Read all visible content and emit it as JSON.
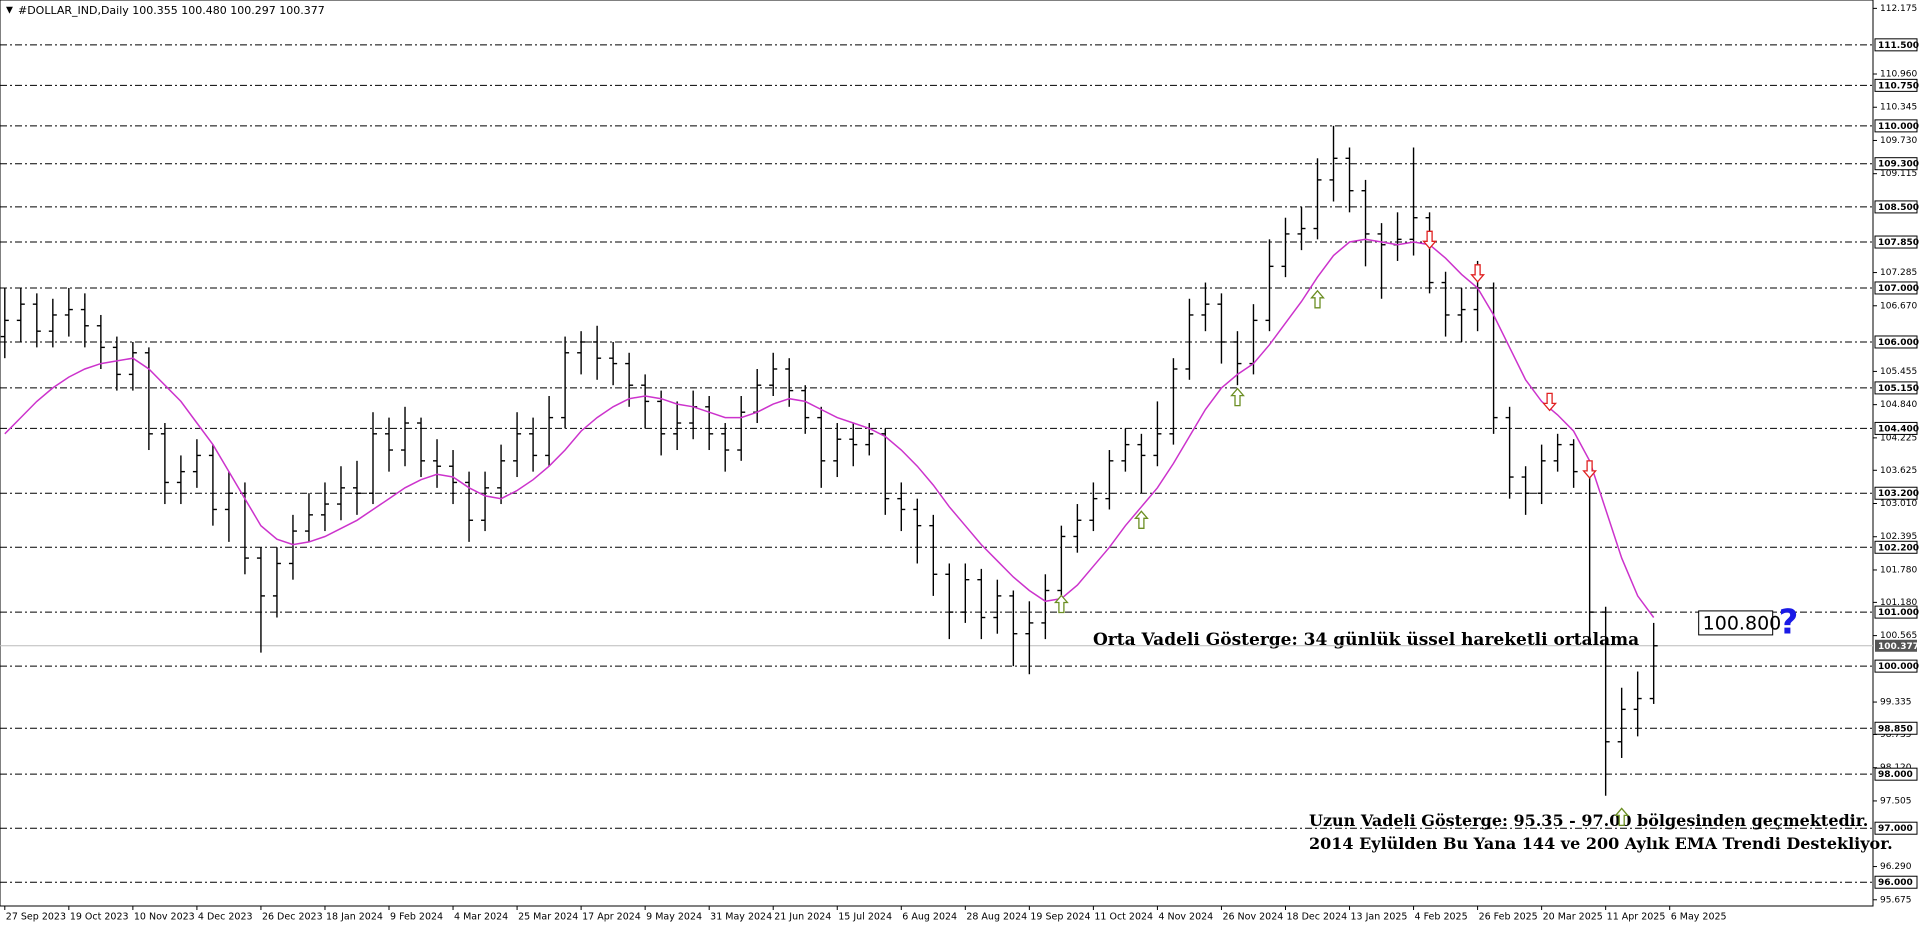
{
  "chart_data": {
    "type": "ohlc",
    "title": "#DOLLAR_IND,Daily  100.355 100.480 100.297 100.377",
    "xlim": [
      -0.3,
      116.7
    ],
    "ylim": [
      95.56,
      112.33
    ],
    "xticks": [
      {
        "value": 0,
        "label": "27 Sep 2023"
      },
      {
        "value": 4,
        "label": "19 Oct 2023"
      },
      {
        "value": 8,
        "label": "10 Nov 2023"
      },
      {
        "value": 12,
        "label": "4 Dec 2023"
      },
      {
        "value": 16,
        "label": "26 Dec 2023"
      },
      {
        "value": 20,
        "label": "18 Jan 2024"
      },
      {
        "value": 24,
        "label": "9 Feb 2024"
      },
      {
        "value": 28,
        "label": "4 Mar 2024"
      },
      {
        "value": 32,
        "label": "25 Mar 2024"
      },
      {
        "value": 36,
        "label": "17 Apr 2024"
      },
      {
        "value": 40,
        "label": "9 May 2024"
      },
      {
        "value": 44,
        "label": "31 May 2024"
      },
      {
        "value": 48,
        "label": "21 Jun 2024"
      },
      {
        "value": 52,
        "label": "15 Jul 2024"
      },
      {
        "value": 56,
        "label": "6 Aug 2024"
      },
      {
        "value": 60,
        "label": "28 Aug 2024"
      },
      {
        "value": 64,
        "label": "19 Sep 2024"
      },
      {
        "value": 68,
        "label": "11 Oct 2024"
      },
      {
        "value": 72,
        "label": "4 Nov 2024"
      },
      {
        "value": 76,
        "label": "26 Nov 2024"
      },
      {
        "value": 80,
        "label": "18 Dec 2024"
      },
      {
        "value": 84,
        "label": "13 Jan 2025"
      },
      {
        "value": 88,
        "label": "4 Feb 2025"
      },
      {
        "value": 92,
        "label": "26 Feb 2025"
      },
      {
        "value": 96,
        "label": "20 Mar 2025"
      },
      {
        "value": 100,
        "label": "11 Apr 2025"
      },
      {
        "value": 104,
        "label": "6 May 2025"
      }
    ],
    "yticks": [
      112.175,
      {
        "value": 110.96,
        "label": "110.960"
      },
      110.345,
      {
        "value": 109.73,
        "label": "109.730"
      },
      109.115,
      107.285,
      {
        "value": 106.67,
        "label": "106.670"
      },
      105.455,
      {
        "value": 104.84,
        "label": "104.840"
      },
      104.225,
      103.625,
      {
        "value": 103.01,
        "label": "103.010"
      },
      102.395,
      {
        "value": 101.78,
        "label": "101.780"
      },
      {
        "value": 101.18,
        "label": "101.180"
      },
      100.565,
      99.335,
      98.735,
      {
        "value": 98.12,
        "label": "98.120"
      },
      97.505,
      {
        "value": 96.29,
        "label": "96.290"
      },
      95.675
    ],
    "levels": [
      {
        "value": 111.5,
        "label": "111.500"
      },
      {
        "value": 110.75,
        "label": "110.750"
      },
      {
        "value": 110,
        "label": "110.000"
      },
      {
        "value": 109.3,
        "label": "109.300"
      },
      {
        "value": 108.5,
        "label": "108.500"
      },
      {
        "value": 107.85,
        "label": "107.850"
      },
      {
        "value": 107,
        "label": "107.000"
      },
      {
        "value": 106,
        "label": "106.000"
      },
      {
        "value": 105.15,
        "label": "105.150"
      },
      {
        "value": 104.4,
        "label": "104.400"
      },
      {
        "value": 103.2,
        "label": "103.200"
      },
      {
        "value": 102.2,
        "label": "102.200"
      },
      {
        "value": 101,
        "label": "101.000"
      },
      {
        "value": 100,
        "label": "100.000"
      },
      {
        "value": 98.85,
        "label": "98.850"
      },
      {
        "value": 98,
        "label": "98.000"
      },
      {
        "value": 97,
        "label": "97.000"
      },
      {
        "value": 96,
        "label": "96.000"
      }
    ],
    "last_price": 100.377,
    "color": "#000000",
    "open": [
      106.1,
      106.4,
      106.7,
      106.2,
      106.5,
      106.6,
      106.3,
      105.9,
      105.4,
      105.8,
      104.3,
      103.4,
      103.6,
      103.9,
      102.9,
      103.2,
      102.0,
      101.3,
      101.9,
      102.5,
      102.8,
      103.0,
      103.3,
      103.2,
      104.3,
      104.0,
      104.5,
      103.8,
      103.7,
      103.4,
      102.7,
      103.3,
      103.8,
      104.3,
      103.9,
      104.6,
      105.8,
      106.0,
      105.7,
      105.6,
      105.2,
      104.9,
      104.3,
      104.5,
      104.8,
      104.3,
      104.0,
      104.7,
      105.2,
      105.5,
      105.1,
      104.6,
      103.8,
      104.2,
      104.1,
      104.3,
      103.1,
      102.9,
      102.6,
      101.7,
      101.0,
      101.6,
      100.9,
      101.3,
      100.6,
      100.8,
      101.4,
      102.4,
      102.7,
      103.1,
      103.8,
      104.1,
      103.9,
      104.3,
      105.5,
      106.5,
      106.7,
      106.0,
      105.6,
      106.4,
      107.4,
      108.0,
      108.1,
      109.0,
      109.4,
      108.8,
      108.0,
      107.8,
      107.9,
      108.3,
      107.1,
      106.5,
      106.6,
      107.0,
      104.6,
      103.5,
      103.2,
      103.8,
      104.1,
      103.6,
      101.0,
      98.6,
      99.2,
      99.4
    ],
    "high": [
      107.0,
      107.0,
      106.9,
      106.8,
      107.0,
      106.9,
      106.5,
      106.1,
      106.0,
      105.9,
      104.5,
      103.9,
      104.2,
      104.1,
      103.6,
      103.4,
      102.2,
      102.2,
      102.8,
      103.2,
      103.4,
      103.7,
      103.8,
      104.7,
      104.6,
      104.8,
      104.6,
      104.2,
      104.0,
      103.6,
      103.6,
      104.1,
      104.7,
      104.6,
      105.0,
      106.1,
      106.2,
      106.3,
      106.0,
      105.8,
      105.4,
      105.1,
      104.9,
      105.1,
      105.0,
      104.5,
      105.0,
      105.5,
      105.8,
      105.7,
      105.2,
      104.8,
      104.5,
      104.5,
      104.5,
      104.4,
      103.4,
      103.1,
      102.8,
      101.9,
      101.9,
      101.8,
      101.6,
      101.4,
      101.2,
      101.7,
      102.6,
      103.0,
      103.4,
      104.0,
      104.4,
      104.3,
      104.9,
      105.7,
      106.8,
      107.1,
      106.9,
      106.2,
      106.7,
      107.9,
      108.3,
      108.5,
      109.4,
      110.0,
      109.6,
      109.0,
      108.2,
      108.4,
      109.6,
      108.4,
      107.3,
      107.0,
      107.5,
      107.1,
      104.8,
      103.7,
      104.1,
      104.3,
      104.2,
      103.7,
      101.1,
      99.6,
      99.9,
      100.8
    ],
    "low": [
      105.7,
      106.0,
      105.9,
      105.9,
      106.1,
      105.9,
      105.5,
      105.1,
      105.1,
      104.0,
      103.0,
      103.0,
      103.3,
      102.6,
      102.3,
      101.7,
      100.25,
      100.9,
      101.6,
      102.3,
      102.5,
      102.7,
      102.8,
      103.0,
      103.6,
      103.7,
      103.5,
      103.3,
      103.0,
      102.3,
      102.5,
      103.0,
      103.5,
      103.6,
      103.7,
      104.4,
      105.4,
      105.3,
      105.2,
      104.8,
      104.4,
      103.9,
      104.0,
      104.2,
      104.0,
      103.6,
      103.8,
      104.5,
      105.0,
      104.8,
      104.3,
      103.3,
      103.5,
      103.7,
      103.9,
      102.8,
      102.5,
      101.9,
      101.3,
      100.5,
      100.8,
      100.5,
      100.6,
      100.0,
      99.85,
      100.5,
      101.2,
      102.1,
      102.5,
      102.9,
      103.6,
      103.2,
      103.7,
      104.1,
      105.3,
      106.2,
      105.6,
      105.2,
      105.4,
      106.2,
      107.2,
      107.7,
      107.9,
      108.6,
      108.4,
      107.4,
      106.8,
      107.5,
      107.6,
      106.9,
      106.1,
      106.0,
      106.2,
      104.3,
      103.1,
      102.8,
      103.0,
      103.6,
      103.3,
      100.5,
      97.6,
      98.3,
      98.7,
      99.3
    ],
    "close": [
      106.4,
      106.7,
      106.2,
      106.5,
      106.6,
      106.3,
      105.9,
      105.4,
      105.8,
      104.3,
      103.4,
      103.6,
      103.9,
      102.9,
      103.2,
      102.0,
      101.3,
      101.9,
      102.5,
      102.8,
      103.0,
      103.3,
      103.2,
      104.3,
      104.0,
      104.5,
      103.8,
      103.7,
      103.4,
      102.7,
      103.3,
      103.8,
      104.3,
      103.9,
      104.6,
      105.8,
      106.0,
      105.7,
      105.6,
      105.2,
      104.9,
      104.3,
      104.5,
      104.8,
      104.3,
      104.0,
      104.7,
      105.2,
      105.5,
      105.1,
      104.6,
      103.8,
      104.2,
      104.1,
      104.3,
      103.1,
      102.9,
      102.6,
      101.7,
      101.0,
      101.6,
      100.9,
      101.3,
      100.6,
      100.8,
      101.4,
      102.4,
      102.7,
      103.1,
      103.8,
      104.1,
      103.9,
      104.3,
      105.5,
      106.5,
      106.7,
      106.0,
      105.6,
      106.4,
      107.4,
      108.0,
      108.1,
      109.0,
      109.4,
      108.8,
      108.0,
      107.8,
      107.9,
      108.3,
      107.1,
      106.5,
      106.6,
      107.0,
      104.6,
      103.5,
      103.2,
      103.8,
      104.1,
      103.6,
      101.0,
      98.6,
      99.2,
      99.4,
      100.377
    ],
    "ema": {
      "color": "#cc33cc",
      "values": [
        104.3,
        104.6,
        104.9,
        105.15,
        105.35,
        105.5,
        105.6,
        105.65,
        105.7,
        105.5,
        105.2,
        104.9,
        104.5,
        104.1,
        103.6,
        103.1,
        102.6,
        102.35,
        102.25,
        102.3,
        102.4,
        102.55,
        102.7,
        102.9,
        103.1,
        103.3,
        103.45,
        103.55,
        103.5,
        103.3,
        103.15,
        103.1,
        103.25,
        103.45,
        103.7,
        104.0,
        104.35,
        104.6,
        104.8,
        104.95,
        105.0,
        104.95,
        104.85,
        104.8,
        104.7,
        104.6,
        104.6,
        104.7,
        104.85,
        104.95,
        104.9,
        104.75,
        104.6,
        104.5,
        104.4,
        104.25,
        104.0,
        103.7,
        103.35,
        102.95,
        102.6,
        102.25,
        101.95,
        101.65,
        101.4,
        101.2,
        101.25,
        101.5,
        101.85,
        102.2,
        102.6,
        102.95,
        103.3,
        103.75,
        104.25,
        104.75,
        105.15,
        105.4,
        105.6,
        105.95,
        106.35,
        106.75,
        107.2,
        107.6,
        107.85,
        107.9,
        107.85,
        107.8,
        107.85,
        107.8,
        107.55,
        107.25,
        107.0,
        106.5,
        105.9,
        105.3,
        104.9,
        104.65,
        104.35,
        103.8,
        102.9,
        102.0,
        101.3,
        100.9
      ]
    },
    "up_arrows": {
      "color": "#6b8e23",
      "x": [
        66,
        71,
        77,
        82,
        101
      ],
      "values": [
        101.14,
        102.7,
        104.97,
        106.78,
        97.2
      ]
    },
    "down_arrows": {
      "color": "#e02020",
      "x": [
        89,
        92,
        96.5,
        99
      ],
      "values": [
        107.9,
        107.28,
        104.9,
        103.65
      ]
    },
    "target": {
      "value": 100.8,
      "label": "100.800"
    },
    "target_mark": "?",
    "annotations": [
      "Orta Vadeli Gösterge: 34 günlük üssel hareketli ortalama",
      "Uzun Vadeli Gösterge: 95.35 - 97.00 bölgesinden geçmektedir.",
      "2014 Eylülden Bu Yana 144 ve 200 Aylık EMA Trendi Destekliyor."
    ]
  }
}
